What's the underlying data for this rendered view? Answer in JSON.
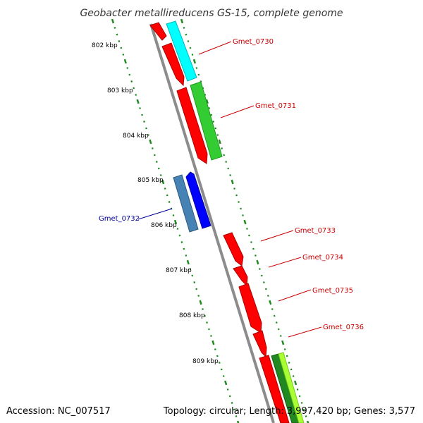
{
  "title": "Geobacter metallireducens GS-15, complete genome",
  "footer": {
    "accession": "Accession: NC_007517",
    "summary": "Topology: circular; Length: 3,997,420 bp; Genes: 3,577"
  },
  "colors": {
    "backbone": "#8c8c8c",
    "tick": "#1f8a1f",
    "forward_cds": "#ff0000",
    "reverse_cds": "#0000ff",
    "cyan_feature": "#00ffff",
    "green_feature": "#33cc33",
    "steel_feature": "#4682b4",
    "lime_feature": "#aaff33",
    "label_red": "#cc0000",
    "label_blue": "#000099"
  },
  "kbp_labels": [
    "802 kbp",
    "803 kbp",
    "804 kbp",
    "805 kbp",
    "806 kbp",
    "807 kbp",
    "808 kbp",
    "809 kbp"
  ],
  "gene_labels": [
    {
      "id": "gmet-0730",
      "text": "Gmet_0730",
      "strand": "forward"
    },
    {
      "id": "gmet-0731",
      "text": "Gmet_0731",
      "strand": "forward"
    },
    {
      "id": "gmet-0732",
      "text": "Gmet_0732",
      "strand": "reverse"
    },
    {
      "id": "gmet-0733",
      "text": "Gmet_0733",
      "strand": "forward"
    },
    {
      "id": "gmet-0734",
      "text": "Gmet_0734",
      "strand": "forward"
    },
    {
      "id": "gmet-0735",
      "text": "Gmet_0735",
      "strand": "forward"
    },
    {
      "id": "gmet-0736",
      "text": "Gmet_0736",
      "strand": "forward"
    }
  ]
}
